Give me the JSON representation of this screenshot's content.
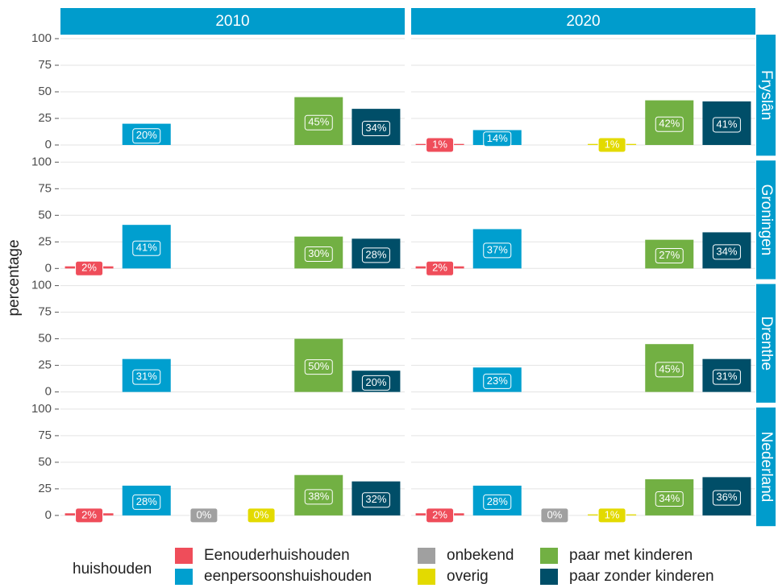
{
  "chart_data": {
    "type": "bar",
    "y_label": "percentage",
    "ylim": [
      0,
      100
    ],
    "yticks": [
      0,
      25,
      50,
      75,
      100
    ],
    "grid": true,
    "legend_title": "huishouden",
    "legend_position": "bottom",
    "strip_color": "#009ccc",
    "categories": [
      "Eenouderhuishouden",
      "eenpersoonshuishouden",
      "onbekend",
      "overig",
      "paar met kinderen",
      "paar zonder kinderen"
    ],
    "colors": [
      "#ef4d5a",
      "#009fcf",
      "#a0a0a0",
      "#e3da00",
      "#72b043",
      "#004e68"
    ],
    "columns": [
      "2010",
      "2020"
    ],
    "rows": [
      {
        "name": "Fryslân",
        "panels": [
          {
            "values": [
              null,
              20,
              null,
              null,
              45,
              34
            ],
            "value_labels": [
              null,
              "20%",
              null,
              null,
              "45%",
              "34%"
            ]
          },
          {
            "values": [
              1,
              14,
              null,
              1,
              42,
              41
            ],
            "value_labels": [
              "1%",
              "14%",
              null,
              "1%",
              "42%",
              "41%"
            ]
          }
        ]
      },
      {
        "name": "Groningen",
        "panels": [
          {
            "values": [
              2,
              41,
              null,
              null,
              30,
              28
            ],
            "value_labels": [
              "2%",
              "41%",
              null,
              null,
              "30%",
              "28%"
            ]
          },
          {
            "values": [
              2,
              37,
              null,
              null,
              27,
              34
            ],
            "value_labels": [
              "2%",
              "37%",
              null,
              null,
              "27%",
              "34%"
            ]
          }
        ]
      },
      {
        "name": "Drenthe",
        "panels": [
          {
            "values": [
              null,
              31,
              null,
              null,
              50,
              20
            ],
            "value_labels": [
              null,
              "31%",
              null,
              null,
              "50%",
              "20%"
            ]
          },
          {
            "values": [
              null,
              23,
              null,
              null,
              45,
              31
            ],
            "value_labels": [
              null,
              "23%",
              null,
              null,
              "45%",
              "31%"
            ]
          }
        ]
      },
      {
        "name": "Nederland",
        "panels": [
          {
            "values": [
              2,
              28,
              0,
              0,
              38,
              32
            ],
            "value_labels": [
              "2%",
              "28%",
              "0%",
              "0%",
              "38%",
              "32%"
            ]
          },
          {
            "values": [
              2,
              28,
              0,
              1,
              34,
              36
            ],
            "value_labels": [
              "2%",
              "28%",
              "0%",
              "1%",
              "34%",
              "36%"
            ]
          }
        ]
      }
    ]
  }
}
